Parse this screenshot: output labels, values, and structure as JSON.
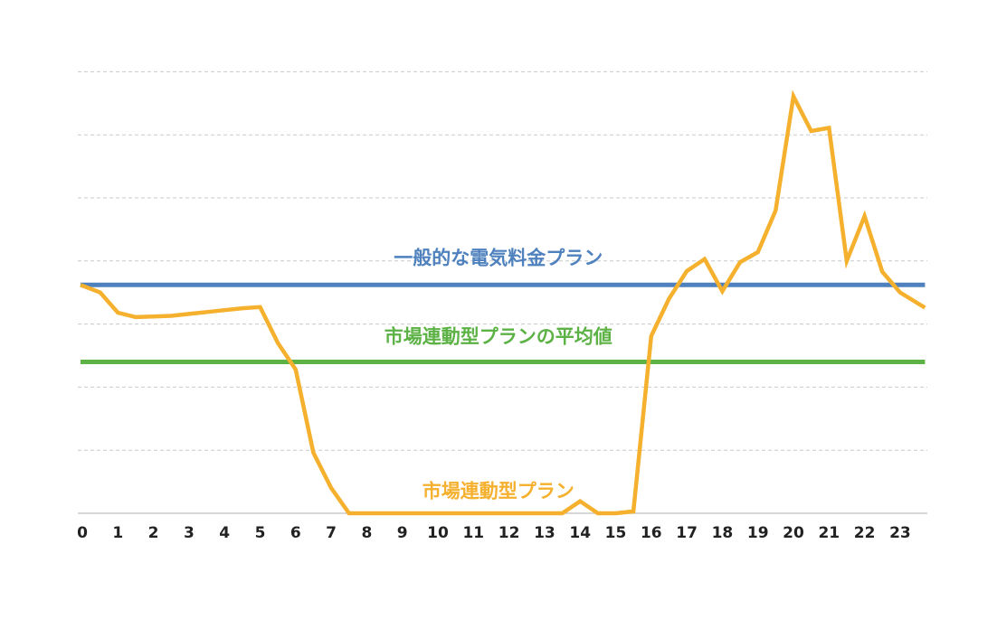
{
  "chart_data": {
    "type": "line",
    "title": "",
    "xlabel": "",
    "ylabel": "",
    "grid": true,
    "x_ticks": [
      "0",
      "1",
      "2",
      "3",
      "4",
      "5",
      "6",
      "7",
      "8",
      "9",
      "10",
      "11",
      "12",
      "13",
      "14",
      "15",
      "16",
      "17",
      "18",
      "19",
      "20",
      "21",
      "22",
      "23"
    ],
    "xlim": [
      -0.05,
      23.7
    ],
    "ylim": [
      0,
      7
    ],
    "series": [
      {
        "name": "一般的な電気料金プラン",
        "color": "#4e81bd",
        "x": [
          -0.05,
          23.7
        ],
        "y": [
          3.62,
          3.62
        ]
      },
      {
        "name": "市場連動型プランの平均値",
        "color": "#5cb245",
        "x": [
          -0.05,
          23.7
        ],
        "y": [
          2.4,
          2.4
        ]
      },
      {
        "name": "市場連動型プラン",
        "color": "#f5b02e",
        "x": [
          -0.05,
          0.5,
          1.0,
          1.5,
          2.0,
          2.5,
          3.0,
          3.5,
          4.0,
          4.5,
          5.0,
          5.5,
          6.0,
          6.5,
          7.0,
          7.5,
          8.0,
          8.5,
          9.0,
          9.5,
          10.0,
          10.5,
          11.0,
          11.5,
          12.0,
          12.5,
          13.0,
          13.5,
          14.0,
          14.5,
          15.0,
          15.5,
          16.0,
          16.5,
          17.0,
          17.5,
          18.0,
          18.5,
          19.0,
          19.5,
          20.0,
          20.5,
          21.0,
          21.5,
          22.0,
          22.5,
          23.0,
          23.7
        ],
        "y": [
          3.62,
          3.5,
          3.18,
          3.11,
          3.12,
          3.13,
          3.16,
          3.19,
          3.22,
          3.25,
          3.27,
          2.7,
          2.28,
          0.96,
          0.4,
          0.0,
          0.0,
          0.0,
          0.0,
          0.0,
          0.0,
          0.0,
          0.0,
          0.0,
          0.0,
          0.0,
          0.0,
          0.0,
          0.19,
          0.0,
          0.0,
          0.03,
          2.81,
          3.4,
          3.84,
          4.03,
          3.52,
          3.98,
          4.14,
          4.8,
          6.61,
          6.06,
          6.11,
          4.0,
          4.71,
          3.83,
          3.5,
          3.26
        ]
      }
    ],
    "annotations": [
      {
        "text": "一般的な電気料金プラン",
        "color": "#4e81bd",
        "x": 11.7,
        "y": 3.95
      },
      {
        "text": "市場連動型プランの平均値",
        "color": "#5cb245",
        "x": 11.7,
        "y": 2.7
      },
      {
        "text": "市場連動型プラン",
        "color": "#f5b02e",
        "x": 11.7,
        "y": 0.25
      }
    ]
  }
}
